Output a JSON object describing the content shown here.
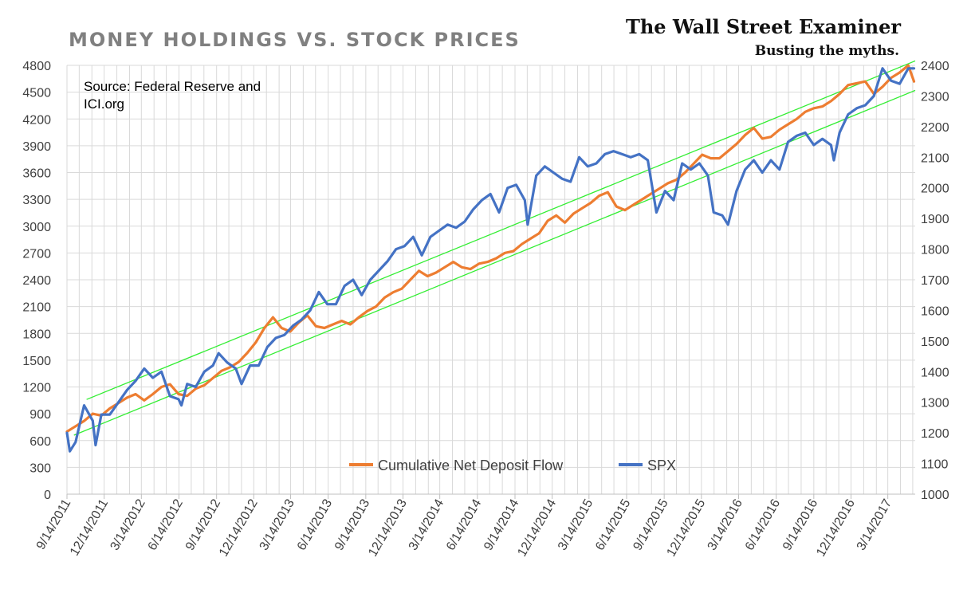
{
  "chart_data": {
    "type": "line",
    "title": "MONEY HOLDINGS VS. STOCK PRICES",
    "brand": "The Wall Street Examiner",
    "tagline": "Busting the myths.",
    "source_note": [
      "Source: Federal Reserve and",
      "ICI.org"
    ],
    "y_left_ticks": [
      "0",
      "300",
      "600",
      "900",
      "1200",
      "1500",
      "1800",
      "2100",
      "2400",
      "2700",
      "3000",
      "3300",
      "3600",
      "3900",
      "4200",
      "4500",
      "4800"
    ],
    "y_right_ticks": [
      "1000",
      "1100",
      "1200",
      "1300",
      "1400",
      "1500",
      "1600",
      "1700",
      "1800",
      "1900",
      "2000",
      "2100",
      "2200",
      "2300",
      "2400"
    ],
    "ylim_left": [
      0,
      4800
    ],
    "ylim_right": [
      1000,
      2400
    ],
    "x_tick_labels": [
      "9/14/2011",
      "12/14/2011",
      "3/14/2012",
      "6/14/2012",
      "9/14/2012",
      "12/14/2012",
      "3/14/2013",
      "6/14/2013",
      "9/14/2013",
      "12/14/2013",
      "3/14/2014",
      "6/14/2014",
      "9/14/2014",
      "12/14/2014",
      "3/14/2015",
      "6/14/2015",
      "9/14/2015",
      "12/14/2015",
      "3/14/2016",
      "6/14/2016",
      "9/14/2016",
      "12/14/2016",
      "3/14/2017"
    ],
    "xlim": [
      "2011-09-14",
      "2017-05-20"
    ],
    "grid": true,
    "legend_position": "bottom-center",
    "series": [
      {
        "name": "Cumulative Net Deposit Flow",
        "axis": "left",
        "color": "#ED7D31",
        "points": [
          [
            "2011-09-14",
            700
          ],
          [
            "2011-10-05",
            760
          ],
          [
            "2011-10-26",
            820
          ],
          [
            "2011-11-16",
            900
          ],
          [
            "2011-12-07",
            880
          ],
          [
            "2011-12-28",
            960
          ],
          [
            "2012-01-18",
            1020
          ],
          [
            "2012-02-08",
            1080
          ],
          [
            "2012-02-29",
            1120
          ],
          [
            "2012-03-21",
            1050
          ],
          [
            "2012-04-11",
            1120
          ],
          [
            "2012-05-02",
            1200
          ],
          [
            "2012-05-23",
            1230
          ],
          [
            "2012-06-13",
            1120
          ],
          [
            "2012-07-04",
            1100
          ],
          [
            "2012-07-25",
            1180
          ],
          [
            "2012-08-15",
            1220
          ],
          [
            "2012-09-05",
            1300
          ],
          [
            "2012-09-26",
            1380
          ],
          [
            "2012-10-17",
            1420
          ],
          [
            "2012-11-07",
            1480
          ],
          [
            "2012-11-28",
            1580
          ],
          [
            "2012-12-19",
            1700
          ],
          [
            "2013-01-09",
            1860
          ],
          [
            "2013-01-30",
            1980
          ],
          [
            "2013-02-20",
            1860
          ],
          [
            "2013-03-13",
            1820
          ],
          [
            "2013-04-03",
            1920
          ],
          [
            "2013-04-24",
            2000
          ],
          [
            "2013-05-15",
            1880
          ],
          [
            "2013-06-05",
            1860
          ],
          [
            "2013-06-26",
            1900
          ],
          [
            "2013-07-17",
            1940
          ],
          [
            "2013-08-07",
            1900
          ],
          [
            "2013-08-28",
            1980
          ],
          [
            "2013-09-18",
            2050
          ],
          [
            "2013-10-09",
            2100
          ],
          [
            "2013-10-30",
            2200
          ],
          [
            "2013-11-20",
            2260
          ],
          [
            "2013-12-11",
            2300
          ],
          [
            "2014-01-01",
            2400
          ],
          [
            "2014-01-22",
            2500
          ],
          [
            "2014-02-12",
            2440
          ],
          [
            "2014-03-05",
            2480
          ],
          [
            "2014-03-26",
            2540
          ],
          [
            "2014-04-16",
            2600
          ],
          [
            "2014-05-07",
            2540
          ],
          [
            "2014-05-28",
            2520
          ],
          [
            "2014-06-18",
            2580
          ],
          [
            "2014-07-09",
            2600
          ],
          [
            "2014-07-30",
            2640
          ],
          [
            "2014-08-20",
            2700
          ],
          [
            "2014-09-10",
            2720
          ],
          [
            "2014-10-01",
            2800
          ],
          [
            "2014-10-22",
            2860
          ],
          [
            "2014-11-12",
            2920
          ],
          [
            "2014-12-03",
            3060
          ],
          [
            "2014-12-24",
            3120
          ],
          [
            "2015-01-14",
            3040
          ],
          [
            "2015-02-04",
            3140
          ],
          [
            "2015-02-25",
            3200
          ],
          [
            "2015-03-18",
            3260
          ],
          [
            "2015-04-08",
            3340
          ],
          [
            "2015-04-29",
            3380
          ],
          [
            "2015-05-20",
            3220
          ],
          [
            "2015-06-10",
            3180
          ],
          [
            "2015-07-01",
            3240
          ],
          [
            "2015-07-22",
            3300
          ],
          [
            "2015-08-12",
            3360
          ],
          [
            "2015-09-02",
            3420
          ],
          [
            "2015-09-23",
            3480
          ],
          [
            "2015-10-14",
            3520
          ],
          [
            "2015-11-04",
            3600
          ],
          [
            "2015-11-25",
            3700
          ],
          [
            "2015-12-16",
            3800
          ],
          [
            "2016-01-06",
            3760
          ],
          [
            "2016-01-27",
            3760
          ],
          [
            "2016-02-17",
            3840
          ],
          [
            "2016-03-09",
            3920
          ],
          [
            "2016-03-30",
            4020
          ],
          [
            "2016-04-20",
            4100
          ],
          [
            "2016-05-11",
            3980
          ],
          [
            "2016-06-01",
            4000
          ],
          [
            "2016-06-22",
            4080
          ],
          [
            "2016-07-13",
            4140
          ],
          [
            "2016-08-03",
            4200
          ],
          [
            "2016-08-24",
            4280
          ],
          [
            "2016-09-14",
            4320
          ],
          [
            "2016-10-05",
            4340
          ],
          [
            "2016-10-26",
            4400
          ],
          [
            "2016-11-16",
            4480
          ],
          [
            "2016-12-07",
            4580
          ],
          [
            "2016-12-28",
            4600
          ],
          [
            "2017-01-18",
            4620
          ],
          [
            "2017-02-08",
            4480
          ],
          [
            "2017-03-01",
            4560
          ],
          [
            "2017-03-22",
            4660
          ],
          [
            "2017-04-12",
            4720
          ],
          [
            "2017-05-03",
            4800
          ],
          [
            "2017-05-17",
            4620
          ]
        ]
      },
      {
        "name": "SPX",
        "axis": "right",
        "color": "#4472C4",
        "points": [
          [
            "2011-09-14",
            1200
          ],
          [
            "2011-09-21",
            1140
          ],
          [
            "2011-10-05",
            1170
          ],
          [
            "2011-10-19",
            1250
          ],
          [
            "2011-10-26",
            1290
          ],
          [
            "2011-11-16",
            1240
          ],
          [
            "2011-11-23",
            1160
          ],
          [
            "2011-12-07",
            1260
          ],
          [
            "2011-12-28",
            1260
          ],
          [
            "2012-01-18",
            1300
          ],
          [
            "2012-02-08",
            1340
          ],
          [
            "2012-02-29",
            1370
          ],
          [
            "2012-03-21",
            1410
          ],
          [
            "2012-04-11",
            1380
          ],
          [
            "2012-05-02",
            1400
          ],
          [
            "2012-05-23",
            1320
          ],
          [
            "2012-06-13",
            1310
          ],
          [
            "2012-06-20",
            1290
          ],
          [
            "2012-07-04",
            1360
          ],
          [
            "2012-07-25",
            1350
          ],
          [
            "2012-08-15",
            1400
          ],
          [
            "2012-09-05",
            1420
          ],
          [
            "2012-09-19",
            1460
          ],
          [
            "2012-10-10",
            1430
          ],
          [
            "2012-10-31",
            1410
          ],
          [
            "2012-11-14",
            1360
          ],
          [
            "2012-12-05",
            1420
          ],
          [
            "2012-12-26",
            1420
          ],
          [
            "2013-01-16",
            1480
          ],
          [
            "2013-02-06",
            1510
          ],
          [
            "2013-02-27",
            1520
          ],
          [
            "2013-03-20",
            1550
          ],
          [
            "2013-04-10",
            1570
          ],
          [
            "2013-05-01",
            1600
          ],
          [
            "2013-05-22",
            1660
          ],
          [
            "2013-06-12",
            1620
          ],
          [
            "2013-07-03",
            1620
          ],
          [
            "2013-07-24",
            1680
          ],
          [
            "2013-08-14",
            1700
          ],
          [
            "2013-09-04",
            1650
          ],
          [
            "2013-09-25",
            1700
          ],
          [
            "2013-10-16",
            1730
          ],
          [
            "2013-11-06",
            1760
          ],
          [
            "2013-11-27",
            1800
          ],
          [
            "2013-12-18",
            1810
          ],
          [
            "2014-01-08",
            1840
          ],
          [
            "2014-01-29",
            1780
          ],
          [
            "2014-02-19",
            1840
          ],
          [
            "2014-03-12",
            1860
          ],
          [
            "2014-04-02",
            1880
          ],
          [
            "2014-04-23",
            1870
          ],
          [
            "2014-05-14",
            1890
          ],
          [
            "2014-06-04",
            1930
          ],
          [
            "2014-06-25",
            1960
          ],
          [
            "2014-07-16",
            1980
          ],
          [
            "2014-08-06",
            1920
          ],
          [
            "2014-08-27",
            2000
          ],
          [
            "2014-09-17",
            2010
          ],
          [
            "2014-10-08",
            1960
          ],
          [
            "2014-10-15",
            1880
          ],
          [
            "2014-11-05",
            2040
          ],
          [
            "2014-11-26",
            2070
          ],
          [
            "2014-12-17",
            2050
          ],
          [
            "2015-01-07",
            2030
          ],
          [
            "2015-01-28",
            2020
          ],
          [
            "2015-02-18",
            2100
          ],
          [
            "2015-03-11",
            2070
          ],
          [
            "2015-04-01",
            2080
          ],
          [
            "2015-04-22",
            2110
          ],
          [
            "2015-05-13",
            2120
          ],
          [
            "2015-06-03",
            2110
          ],
          [
            "2015-06-24",
            2100
          ],
          [
            "2015-07-15",
            2110
          ],
          [
            "2015-08-05",
            2090
          ],
          [
            "2015-08-26",
            1920
          ],
          [
            "2015-09-16",
            1990
          ],
          [
            "2015-10-07",
            1960
          ],
          [
            "2015-10-28",
            2080
          ],
          [
            "2015-11-18",
            2060
          ],
          [
            "2015-12-09",
            2080
          ],
          [
            "2015-12-30",
            2040
          ],
          [
            "2016-01-13",
            1920
          ],
          [
            "2016-02-03",
            1910
          ],
          [
            "2016-02-17",
            1880
          ],
          [
            "2016-03-09",
            1990
          ],
          [
            "2016-03-30",
            2060
          ],
          [
            "2016-04-20",
            2090
          ],
          [
            "2016-05-11",
            2050
          ],
          [
            "2016-06-01",
            2090
          ],
          [
            "2016-06-22",
            2060
          ],
          [
            "2016-07-13",
            2150
          ],
          [
            "2016-08-03",
            2170
          ],
          [
            "2016-08-24",
            2180
          ],
          [
            "2016-09-14",
            2140
          ],
          [
            "2016-10-05",
            2160
          ],
          [
            "2016-10-26",
            2140
          ],
          [
            "2016-11-02",
            2090
          ],
          [
            "2016-11-16",
            2180
          ],
          [
            "2016-12-07",
            2240
          ],
          [
            "2016-12-28",
            2260
          ],
          [
            "2017-01-18",
            2270
          ],
          [
            "2017-02-08",
            2300
          ],
          [
            "2017-03-01",
            2390
          ],
          [
            "2017-03-22",
            2350
          ],
          [
            "2017-04-12",
            2340
          ],
          [
            "2017-05-03",
            2390
          ],
          [
            "2017-05-17",
            2390
          ]
        ]
      }
    ],
    "trend_channel": {
      "color": "#33EE33",
      "axis": "left",
      "upper": [
        [
          "2011-11-01",
          1060
        ],
        [
          "2017-05-20",
          4850
        ]
      ],
      "lower": [
        [
          "2011-10-01",
          660
        ],
        [
          "2017-05-20",
          4520
        ]
      ]
    }
  }
}
